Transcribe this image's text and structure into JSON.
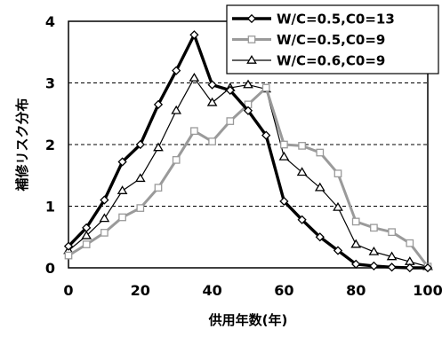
{
  "chart_data": {
    "type": "line",
    "title": "",
    "xlabel": "供用年数(年)",
    "ylabel": "補修リスク分布",
    "xlim": [
      0,
      100
    ],
    "ylim": [
      0,
      4
    ],
    "x_ticks": [
      0,
      20,
      40,
      60,
      80,
      100
    ],
    "y_ticks": [
      0,
      1,
      2,
      3,
      4
    ],
    "grid": "horizontal dashed",
    "legend_position": "top-right",
    "x": [
      0,
      5,
      10,
      15,
      20,
      25,
      30,
      35,
      40,
      45,
      50,
      55,
      60,
      65,
      70,
      75,
      80,
      85,
      90,
      95,
      100
    ],
    "series": [
      {
        "name": "W/C=0.5,C0=13",
        "color": "#000000",
        "marker": "diamond",
        "values": [
          0.35,
          0.65,
          1.1,
          1.72,
          2.0,
          2.65,
          3.2,
          3.78,
          2.97,
          2.88,
          2.55,
          2.15,
          1.08,
          0.78,
          0.5,
          0.28,
          0.06,
          0.03,
          0.01,
          0.0,
          0.0
        ]
      },
      {
        "name": "W/C=0.5,C0=9",
        "color": "#9a9a9a",
        "marker": "square",
        "values": [
          0.2,
          0.38,
          0.57,
          0.82,
          0.97,
          1.3,
          1.75,
          2.22,
          2.05,
          2.38,
          2.65,
          2.92,
          2.0,
          1.98,
          1.87,
          1.53,
          0.75,
          0.65,
          0.58,
          0.4,
          0.02
        ]
      },
      {
        "name": "W/C=0.6,C0=9",
        "color": "#000000",
        "marker": "triangle",
        "values": [
          0.28,
          0.52,
          0.8,
          1.25,
          1.45,
          1.95,
          2.55,
          3.08,
          2.68,
          2.92,
          2.97,
          2.9,
          1.8,
          1.55,
          1.3,
          0.98,
          0.38,
          0.26,
          0.18,
          0.1,
          0.02
        ]
      }
    ]
  }
}
